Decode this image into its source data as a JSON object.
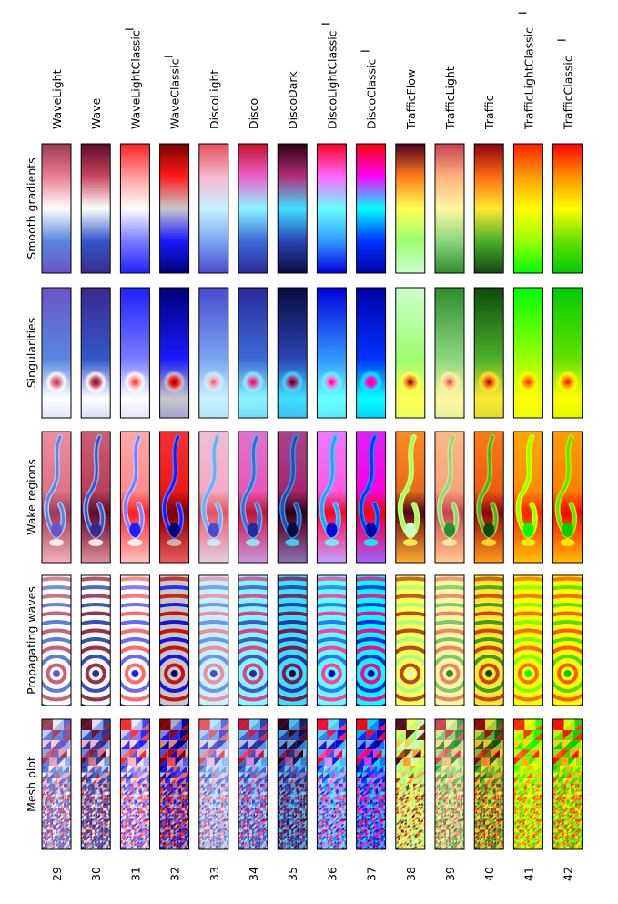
{
  "figure": {
    "row_headers": [
      "Smooth gradients",
      "Singularities",
      "Wake regions",
      "Propagating waves",
      "Mesh plot"
    ],
    "schemes": [
      {
        "id": "29",
        "name": "WaveLight",
        "flag": "",
        "colors": [
          "#9b3a56",
          "#e87d8f",
          "#ffffff",
          "#5a86e0",
          "#6a55c8"
        ],
        "kind": "wave"
      },
      {
        "id": "30",
        "name": "Wave",
        "flag": "",
        "colors": [
          "#5d0b2b",
          "#c6475f",
          "#ffffff",
          "#3358c9",
          "#3a2a8c"
        ],
        "kind": "wave"
      },
      {
        "id": "31",
        "name": "WaveLightClassic",
        "flag": "I",
        "colors": [
          "#ff2020",
          "#ff9b9b",
          "#ffffff",
          "#7b7bff",
          "#2020ff"
        ],
        "kind": "wave"
      },
      {
        "id": "32",
        "name": "WaveClassic",
        "flag": "I",
        "colors": [
          "#7a0000",
          "#ff1a1a",
          "#c8c8c8",
          "#1a1aff",
          "#00007a"
        ],
        "kind": "wave"
      },
      {
        "id": "33",
        "name": "DiscoLight",
        "flag": "",
        "colors": [
          "#e4505a",
          "#f7b6cf",
          "#c8f2ff",
          "#7aa6f0",
          "#4a4ad0"
        ],
        "kind": "disco"
      },
      {
        "id": "34",
        "name": "Disco",
        "flag": "",
        "colors": [
          "#c4122e",
          "#ee5fc8",
          "#87f6ff",
          "#3d6ad8",
          "#2a2a9c"
        ],
        "kind": "disco"
      },
      {
        "id": "35",
        "name": "DiscoDark",
        "flag": "",
        "colors": [
          "#2a0010",
          "#b72c7c",
          "#3fe0ff",
          "#2a46b8",
          "#0a0a40"
        ],
        "kind": "disco"
      },
      {
        "id": "36",
        "name": "DiscoLightClassic",
        "flag": "I",
        "colors": [
          "#ff0022",
          "#ff66ff",
          "#66ffff",
          "#3399ff",
          "#0000dd"
        ],
        "kind": "disco"
      },
      {
        "id": "37",
        "name": "DiscoClassic",
        "flag": "I",
        "colors": [
          "#ff0000",
          "#ff00ff",
          "#00ffff",
          "#0033ff",
          "#0000aa"
        ],
        "kind": "disco"
      },
      {
        "id": "38",
        "name": "TrafficFlow",
        "flag": "",
        "colors": [
          "#4a0020",
          "#ff7a1a",
          "#ffff55",
          "#9cff70",
          "#ccffcc"
        ],
        "kind": "traffic"
      },
      {
        "id": "39",
        "name": "TrafficLight",
        "flag": "",
        "colors": [
          "#c84050",
          "#ffb080",
          "#fff7a0",
          "#8cd680",
          "#2e8e2e"
        ],
        "kind": "traffic"
      },
      {
        "id": "40",
        "name": "Traffic",
        "flag": "",
        "colors": [
          "#8a0010",
          "#ff6a10",
          "#ffea30",
          "#4cb02a",
          "#0d4a0d"
        ],
        "kind": "traffic"
      },
      {
        "id": "41",
        "name": "TrafficLightClassic",
        "flag": "I",
        "colors": [
          "#ff2000",
          "#ff9b00",
          "#ffff00",
          "#9bff00",
          "#00ff00"
        ],
        "kind": "traffic"
      },
      {
        "id": "42",
        "name": "TrafficClassic",
        "flag": "I",
        "colors": [
          "#ff0000",
          "#ff9000",
          "#ffff00",
          "#66e000",
          "#00cc00"
        ],
        "kind": "traffic"
      }
    ]
  }
}
